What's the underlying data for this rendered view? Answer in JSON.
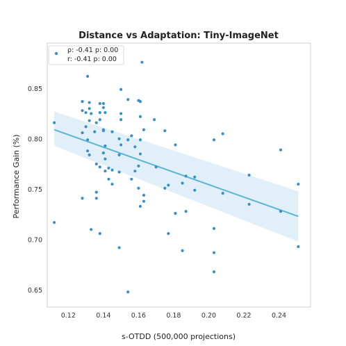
{
  "chart_data": {
    "type": "scatter",
    "title": "Distance vs Adaptation: Tiny-ImageNet",
    "xlabel": "s-OTDD (500,000 projections)",
    "ylabel": "Performance Gain (%)",
    "xlim": [
      0.108,
      0.258
    ],
    "ylim": [
      0.633,
      0.895
    ],
    "xticks": [
      "0.12",
      "0.14",
      "0.16",
      "0.18",
      "0.20",
      "0.22",
      "0.24"
    ],
    "yticks": [
      "0.65",
      "0.70",
      "0.75",
      "0.80",
      "0.85"
    ],
    "grid": false,
    "legend": {
      "placement": "top-left",
      "line1": "ρ: -0.41  p: 0.00",
      "line2": "r: -0.41  p: 0.00"
    },
    "colors": {
      "points": "#3b8fc4",
      "line": "#5ab4d6",
      "band": "#d6eaf5"
    },
    "regression": {
      "x": [
        0.112,
        0.251
      ],
      "y": [
        0.809,
        0.723
      ],
      "band_lower": [
        0.793,
        0.698
      ],
      "band_upper": [
        0.827,
        0.748
      ]
    },
    "points": [
      [
        0.112,
        0.816
      ],
      [
        0.112,
        0.717
      ],
      [
        0.128,
        0.837
      ],
      [
        0.128,
        0.828
      ],
      [
        0.128,
        0.806
      ],
      [
        0.128,
        0.741
      ],
      [
        0.13,
        0.826
      ],
      [
        0.13,
        0.812
      ],
      [
        0.131,
        0.862
      ],
      [
        0.131,
        0.799
      ],
      [
        0.131,
        0.788
      ],
      [
        0.132,
        0.836
      ],
      [
        0.132,
        0.83
      ],
      [
        0.132,
        0.818
      ],
      [
        0.132,
        0.784
      ],
      [
        0.133,
        0.825
      ],
      [
        0.133,
        0.71
      ],
      [
        0.135,
        0.807
      ],
      [
        0.136,
        0.816
      ],
      [
        0.136,
        0.775
      ],
      [
        0.136,
        0.747
      ],
      [
        0.136,
        0.741
      ],
      [
        0.138,
        0.835
      ],
      [
        0.138,
        0.826
      ],
      [
        0.138,
        0.819
      ],
      [
        0.138,
        0.772
      ],
      [
        0.138,
        0.706
      ],
      [
        0.14,
        0.835
      ],
      [
        0.14,
        0.831
      ],
      [
        0.14,
        0.809
      ],
      [
        0.14,
        0.808
      ],
      [
        0.14,
        0.786
      ],
      [
        0.141,
        0.826
      ],
      [
        0.141,
        0.793
      ],
      [
        0.141,
        0.78
      ],
      [
        0.141,
        0.768
      ],
      [
        0.143,
        0.771
      ],
      [
        0.143,
        0.76
      ],
      [
        0.145,
        0.807
      ],
      [
        0.145,
        0.769
      ],
      [
        0.145,
        0.755
      ],
      [
        0.149,
        0.8
      ],
      [
        0.149,
        0.784
      ],
      [
        0.149,
        0.767
      ],
      [
        0.149,
        0.692
      ],
      [
        0.15,
        0.849
      ],
      [
        0.15,
        0.825
      ],
      [
        0.15,
        0.819
      ],
      [
        0.15,
        0.794
      ],
      [
        0.154,
        0.839
      ],
      [
        0.154,
        0.799
      ],
      [
        0.154,
        0.648
      ],
      [
        0.156,
        0.803
      ],
      [
        0.156,
        0.76
      ],
      [
        0.158,
        0.792
      ],
      [
        0.158,
        0.768
      ],
      [
        0.16,
        0.838
      ],
      [
        0.16,
        0.773
      ],
      [
        0.16,
        0.751
      ],
      [
        0.161,
        0.837
      ],
      [
        0.161,
        0.822
      ],
      [
        0.161,
        0.799
      ],
      [
        0.161,
        0.785
      ],
      [
        0.161,
        0.733
      ],
      [
        0.162,
        0.876
      ],
      [
        0.163,
        0.809
      ],
      [
        0.163,
        0.744
      ],
      [
        0.163,
        0.738
      ],
      [
        0.169,
        0.819
      ],
      [
        0.17,
        0.772
      ],
      [
        0.175,
        0.808
      ],
      [
        0.175,
        0.751
      ],
      [
        0.177,
        0.754
      ],
      [
        0.177,
        0.706
      ],
      [
        0.181,
        0.794
      ],
      [
        0.181,
        0.726
      ],
      [
        0.185,
        0.756
      ],
      [
        0.185,
        0.689
      ],
      [
        0.187,
        0.763
      ],
      [
        0.187,
        0.728
      ],
      [
        0.192,
        0.762
      ],
      [
        0.192,
        0.749
      ],
      [
        0.203,
        0.799
      ],
      [
        0.203,
        0.711
      ],
      [
        0.203,
        0.687
      ],
      [
        0.203,
        0.668
      ],
      [
        0.208,
        0.805
      ],
      [
        0.208,
        0.746
      ],
      [
        0.223,
        0.764
      ],
      [
        0.223,
        0.735
      ],
      [
        0.241,
        0.789
      ],
      [
        0.241,
        0.728
      ],
      [
        0.251,
        0.755
      ],
      [
        0.251,
        0.693
      ]
    ]
  }
}
